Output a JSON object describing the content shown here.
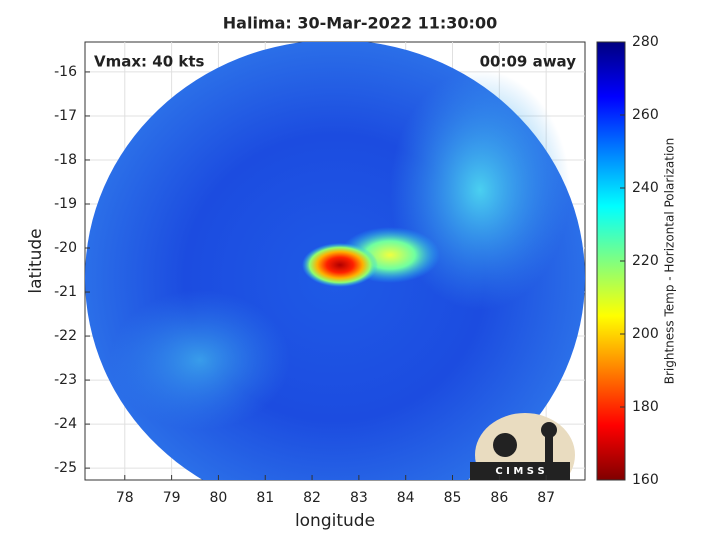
{
  "chart_data": {
    "type": "image",
    "title": "Halima: 30-Mar-2022 11:30:00",
    "xlabel": "longitude",
    "ylabel": "latitude",
    "xlim": [
      77.15,
      87.83
    ],
    "ylim": [
      -25.27,
      -15.32
    ],
    "xticks": [
      78,
      79,
      80,
      81,
      82,
      83,
      84,
      85,
      86,
      87
    ],
    "yticks": [
      -25,
      -24,
      -23,
      -22,
      -21,
      -20,
      -19,
      -18,
      -17,
      -16
    ],
    "grid": true,
    "annotations": [
      "Vmax: 40 kts",
      "00:09 away"
    ],
    "logo": "C I M S S",
    "colorbar": {
      "label": "Brightness Temp - Horizontal Polarization",
      "lim": [
        160,
        280
      ],
      "ticks": [
        160,
        180,
        200,
        220,
        240,
        260,
        280
      ],
      "colors": [
        "#800000",
        "#ff0000",
        "#ff8000",
        "#ffff00",
        "#80ff80",
        "#00ffff",
        "#0080ff",
        "#0000ff",
        "#000080"
      ]
    }
  }
}
